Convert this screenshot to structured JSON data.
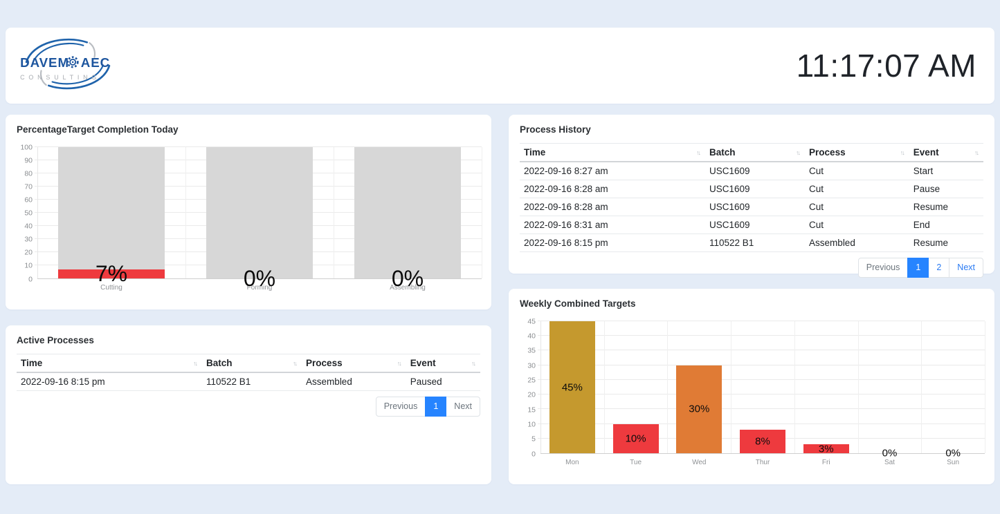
{
  "header": {
    "logo": {
      "name_left": "DAVEM",
      "name_right": "AEC",
      "subtitle": "CONSULTING"
    },
    "clock": "11:17:07 AM"
  },
  "panels": {
    "completion": {
      "title": "PercentageTarget Completion Today"
    },
    "history": {
      "title": "Process History"
    },
    "active": {
      "title": "Active Processes"
    },
    "weekly": {
      "title": "Weekly Combined Targets"
    }
  },
  "sort_icon": "↑↓",
  "tables": {
    "history": {
      "columns": [
        "Time",
        "Batch",
        "Process",
        "Event"
      ],
      "rows": [
        [
          "2022-09-16 8:27 am",
          "USC1609",
          "Cut",
          "Start"
        ],
        [
          "2022-09-16 8:28 am",
          "USC1609",
          "Cut",
          "Pause"
        ],
        [
          "2022-09-16 8:28 am",
          "USC1609",
          "Cut",
          "Resume"
        ],
        [
          "2022-09-16 8:31 am",
          "USC1609",
          "Cut",
          "End"
        ],
        [
          "2022-09-16 8:15 pm",
          "110522 B1",
          "Assembled",
          "Resume"
        ]
      ],
      "pagination": [
        {
          "label": "Previous",
          "state": "disabled"
        },
        {
          "label": "1",
          "state": "active"
        },
        {
          "label": "2",
          "state": "link"
        },
        {
          "label": "Next",
          "state": "link"
        }
      ]
    },
    "active": {
      "columns": [
        "Time",
        "Batch",
        "Process",
        "Event"
      ],
      "rows": [
        [
          "2022-09-16 8:15 pm",
          "110522 B1",
          "Assembled",
          "Paused"
        ]
      ],
      "pagination": [
        {
          "label": "Previous",
          "state": "disabled"
        },
        {
          "label": "1",
          "state": "active"
        },
        {
          "label": "Next",
          "state": "disabled"
        }
      ]
    }
  },
  "chart_data": [
    {
      "type": "bar",
      "title": "PercentageTarget Completion Today",
      "categories": [
        "Cutting",
        "Forming",
        "Assembling"
      ],
      "values": [
        7,
        0,
        0
      ],
      "value_labels": [
        "7%",
        "0%",
        "0%"
      ],
      "bar_colors": [
        "#ee3a3e",
        "#ee3a3e",
        "#ee3a3e"
      ],
      "background_bar_value": 100,
      "background_bar_color": "#d7d7d7",
      "xlabel": "",
      "ylabel": "",
      "ylim": [
        0,
        100
      ],
      "ytick_step": 10,
      "grid": true,
      "legend": "none"
    },
    {
      "type": "bar",
      "title": "Weekly Combined Targets",
      "categories": [
        "Mon",
        "Tue",
        "Wed",
        "Thur",
        "Fri",
        "Sat",
        "Sun"
      ],
      "values": [
        45,
        10,
        30,
        8,
        3,
        0,
        0
      ],
      "value_labels": [
        "45%",
        "10%",
        "30%",
        "8%",
        "3%",
        "0%",
        "0%"
      ],
      "bar_colors": [
        "#c5992e",
        "#ee3a3e",
        "#e07b35",
        "#ee3a3e",
        "#ee3a3e",
        "#ee3a3e",
        "#ee3a3e"
      ],
      "background_bar_value": null,
      "background_bar_color": null,
      "xlabel": "",
      "ylabel": "",
      "ylim": [
        0,
        45
      ],
      "ytick_step": 5,
      "grid": true,
      "legend": "none"
    }
  ],
  "colors": {
    "page_bg": "#e4ecf7",
    "panel_bg": "#ffffff",
    "accent_blue": "#2684ff",
    "link_blue": "#2b7bf3",
    "muted_gray": "#6c757d",
    "bar_red": "#ee3a3e",
    "bar_gold": "#c5992e",
    "bar_orange": "#e07b35",
    "target_bar_gray": "#d7d7d7",
    "logo_blue": "#1d559e",
    "logo_gray": "#a7abb0"
  }
}
